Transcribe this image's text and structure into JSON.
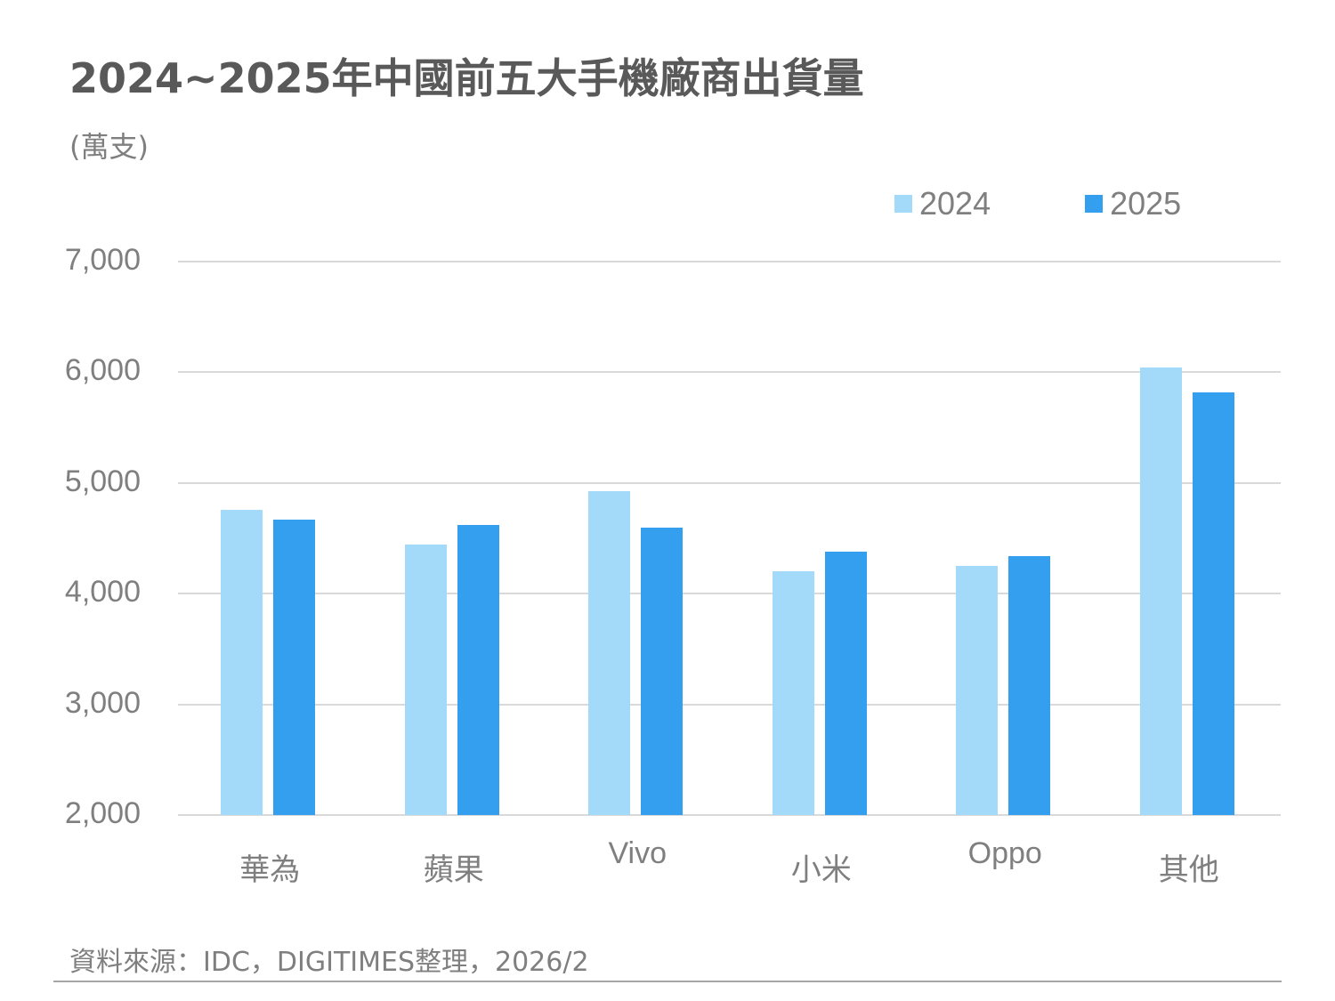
{
  "header": {
    "title": "2024~2025年中國前五大手機廠商出貨量",
    "unit": "(萬支)"
  },
  "legend": [
    {
      "label": "2024",
      "color": "#A3DAFA"
    },
    {
      "label": "2025",
      "color": "#339FEE"
    }
  ],
  "yaxis": {
    "ticks": [
      "7,000",
      "6,000",
      "5,000",
      "4,000",
      "3,000",
      "2,000"
    ]
  },
  "footer": {
    "source": "資料來源：IDC，DIGITIMES整理，2026/2"
  },
  "chart_data": {
    "type": "bar",
    "title": "2024~2025年中國前五大手機廠商出貨量",
    "xlabel": "",
    "ylabel": "(萬支)",
    "categories": [
      "華為",
      "蘋果",
      "Vivo",
      "小米",
      "Oppo",
      "其他"
    ],
    "series": [
      {
        "name": "2024",
        "color": "#A3DAFA",
        "values": [
          4760,
          4440,
          4930,
          4200,
          4250,
          6040
        ]
      },
      {
        "name": "2025",
        "color": "#339FEE",
        "values": [
          4670,
          4620,
          4600,
          4380,
          4340,
          5820
        ]
      }
    ],
    "ylim": [
      2000,
      7000
    ],
    "yticks": [
      2000,
      3000,
      4000,
      5000,
      6000,
      7000
    ],
    "grid": true,
    "legend_position": "top-right"
  }
}
